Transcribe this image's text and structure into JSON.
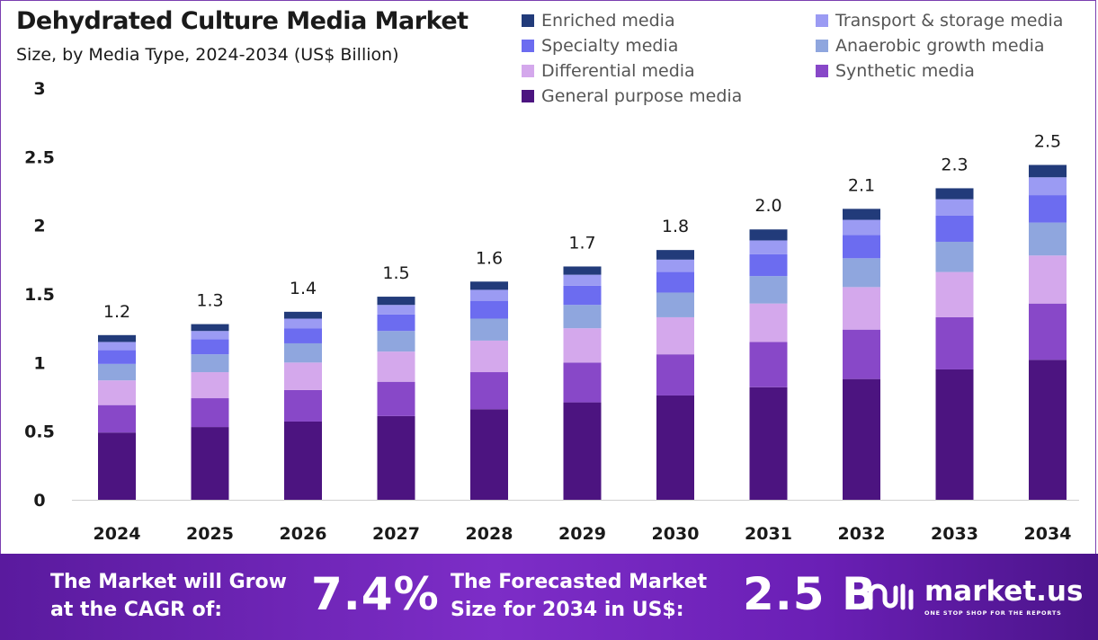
{
  "header": {
    "title": "Dehydrated Culture Media Market",
    "subtitle": "Size, by Media Type, 2024-2034 (US$ Billion)"
  },
  "chart_data": {
    "type": "bar",
    "stacked": true,
    "categories": [
      "2024",
      "2025",
      "2026",
      "2027",
      "2028",
      "2029",
      "2030",
      "2031",
      "2032",
      "2033",
      "2034"
    ],
    "totals": [
      1.2,
      1.3,
      1.4,
      1.5,
      1.6,
      1.7,
      1.8,
      2.0,
      2.1,
      2.3,
      2.5
    ],
    "total_labels": [
      "1.2",
      "1.3",
      "1.4",
      "1.5",
      "1.6",
      "1.7",
      "1.8",
      "2.0",
      "2.1",
      "2.3",
      "2.5"
    ],
    "ylim": [
      0,
      3
    ],
    "yticks": [
      "0",
      "0.5",
      "1",
      "1.5",
      "2",
      "2.5",
      "3"
    ],
    "legend_position": "top-right",
    "series": [
      {
        "name": "General purpose media",
        "color": "#4c1480",
        "values": [
          0.49,
          0.53,
          0.57,
          0.61,
          0.66,
          0.71,
          0.76,
          0.82,
          0.88,
          0.95,
          1.02
        ]
      },
      {
        "name": "Synthetic media",
        "color": "#8848c8",
        "values": [
          0.2,
          0.21,
          0.23,
          0.25,
          0.27,
          0.29,
          0.3,
          0.33,
          0.36,
          0.38,
          0.41
        ]
      },
      {
        "name": "Differential media",
        "color": "#d4a8ec",
        "values": [
          0.18,
          0.19,
          0.2,
          0.22,
          0.23,
          0.25,
          0.27,
          0.28,
          0.31,
          0.33,
          0.35
        ]
      },
      {
        "name": "Anaerobic growth media",
        "color": "#8fa6de",
        "values": [
          0.12,
          0.13,
          0.14,
          0.15,
          0.16,
          0.17,
          0.18,
          0.2,
          0.21,
          0.22,
          0.24
        ]
      },
      {
        "name": "Specialty media",
        "color": "#6c6cf0",
        "values": [
          0.1,
          0.11,
          0.11,
          0.12,
          0.13,
          0.14,
          0.15,
          0.16,
          0.17,
          0.19,
          0.2
        ]
      },
      {
        "name": "Transport & storage media",
        "color": "#9b9bf3",
        "values": [
          0.06,
          0.06,
          0.07,
          0.07,
          0.08,
          0.08,
          0.09,
          0.1,
          0.11,
          0.12,
          0.13
        ]
      },
      {
        "name": "Enriched media",
        "color": "#223b7a",
        "values": [
          0.05,
          0.05,
          0.05,
          0.06,
          0.06,
          0.06,
          0.07,
          0.08,
          0.08,
          0.08,
          0.09
        ]
      }
    ]
  },
  "legend": {
    "items": [
      "Enriched media",
      "Transport & storage media",
      "Specialty media",
      "Anaerobic growth media",
      "Differential media",
      "Synthetic media",
      "General purpose media"
    ]
  },
  "banner": {
    "cagr_label_line1": "The Market will Grow",
    "cagr_label_line2": "at the CAGR of:",
    "cagr_value": "7.4%",
    "forecast_label_line1": "The Forecasted Market",
    "forecast_label_line2": "Size for 2034 in US$:",
    "forecast_value": "2.5 B",
    "brand": "market.us",
    "brand_tagline": "ONE STOP SHOP FOR THE REPORTS"
  },
  "colors": {
    "banner_start": "#5a1a9e",
    "banner_end": "#4b148a",
    "frame": "#7b3fb0"
  }
}
